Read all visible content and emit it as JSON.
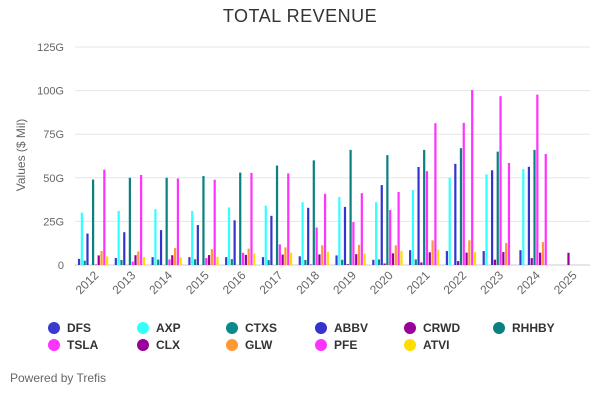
{
  "chart_data": {
    "type": "bar",
    "title": "TOTAL REVENUE",
    "ylabel": "Values ($ Mil)",
    "xlabel": "",
    "ylim": [
      0,
      125
    ],
    "yticks": [
      0,
      25,
      50,
      75,
      100,
      125
    ],
    "ytick_labels": [
      "0",
      "25G",
      "50G",
      "75G",
      "100G",
      "125G"
    ],
    "grid": true,
    "legend": "bottom",
    "categories": [
      "2012",
      "2013",
      "2014",
      "2015",
      "2016",
      "2017",
      "2018",
      "2019",
      "2020",
      "2021",
      "2022",
      "2023",
      "2024",
      "2025"
    ],
    "series": [
      {
        "name": "DFS",
        "color": "#3a3acc",
        "values": [
          3.5,
          4,
          4.5,
          4.5,
          4.5,
          4.5,
          5,
          5.5,
          3,
          8.5,
          8,
          8,
          8.5,
          null
        ]
      },
      {
        "name": "AXP",
        "color": "#33ffff",
        "values": [
          30,
          31,
          32,
          31,
          33,
          34,
          36,
          39,
          36,
          43,
          50,
          52,
          55,
          null
        ]
      },
      {
        "name": "CTXS",
        "color": "#0a8a8a",
        "values": [
          2.5,
          2.9,
          3.1,
          3.3,
          3.4,
          2.8,
          2.9,
          3,
          3.2,
          3.2,
          null,
          null,
          null,
          null
        ]
      },
      {
        "name": "ABBV",
        "color": "#3434cc",
        "values": [
          18,
          18.8,
          20,
          22.9,
          25.6,
          28.2,
          32.8,
          33.3,
          45.8,
          56.2,
          58,
          54.3,
          56.3,
          null
        ]
      },
      {
        "name": "CRWD",
        "color": "#990099",
        "values": [
          null,
          null,
          null,
          null,
          null,
          null,
          0.25,
          0.48,
          0.87,
          1.45,
          2.24,
          3.06,
          3.95,
          7
        ]
      },
      {
        "name": "RHHBY",
        "color": "#0a8080",
        "values": [
          49,
          50,
          50,
          51,
          53,
          57,
          60,
          66,
          63,
          66,
          67,
          65,
          66,
          null
        ]
      },
      {
        "name": "TSLA",
        "color": "#ff33ff",
        "values": [
          0.4,
          2,
          3.2,
          4,
          7,
          11.8,
          21.5,
          24.6,
          31.5,
          53.8,
          81.5,
          96.8,
          97.7,
          null
        ]
      },
      {
        "name": "CLX",
        "color": "#990099",
        "values": [
          5.5,
          5.6,
          5.6,
          5.7,
          5.8,
          5.97,
          6.1,
          6.2,
          6.7,
          7.3,
          7.1,
          7.4,
          7.1,
          null
        ]
      },
      {
        "name": "GLW",
        "color": "#ff9933",
        "values": [
          8,
          7.8,
          9.7,
          9.1,
          9.4,
          10.1,
          11.3,
          11.5,
          11.3,
          14.1,
          14.2,
          12.6,
          13.1,
          null
        ]
      },
      {
        "name": "PFE",
        "color": "#ff33ff",
        "values": [
          54.7,
          51.6,
          49.6,
          48.9,
          52.8,
          52.5,
          40.8,
          41.2,
          41.9,
          81.3,
          100.3,
          58.5,
          63.6,
          null
        ]
      },
      {
        "name": "ATVI",
        "color": "#ffdd00",
        "values": [
          4.9,
          4.6,
          4.4,
          4.7,
          6.6,
          7,
          7.5,
          6.5,
          8.1,
          8.8,
          7.5,
          null,
          null,
          null
        ]
      }
    ]
  },
  "credit": "Powered by Trefis"
}
